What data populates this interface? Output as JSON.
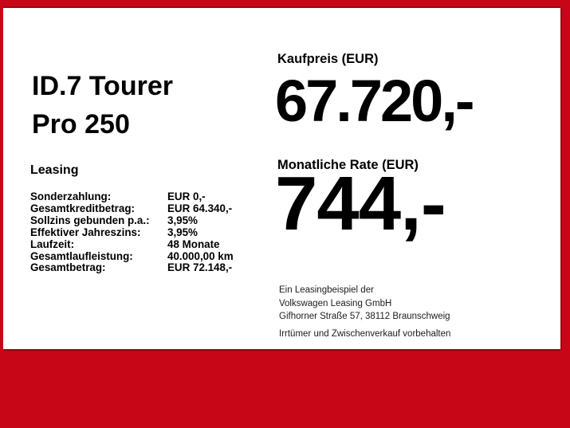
{
  "colors": {
    "background": "#c70617",
    "background_edge": "#9b0410",
    "card": "#ffffff",
    "text": "#000000"
  },
  "vehicle": {
    "title_line1": "ID.7 Tourer",
    "title_line2": "Pro 250"
  },
  "leasing": {
    "heading": "Leasing",
    "rows": [
      {
        "label": "Sonderzahlung:",
        "value": "EUR 0,-"
      },
      {
        "label": "Gesamtkreditbetrag:",
        "value": "EUR 64.340,-"
      },
      {
        "label": "Sollzins gebunden p.a.:",
        "value": "3,95%"
      },
      {
        "label": "Effektiver Jahreszins:",
        "value": "3,95%"
      },
      {
        "label": "Laufzeit:",
        "value": "48 Monate"
      },
      {
        "label": "Gesamtlaufleistung:",
        "value": "40.000,00 km"
      },
      {
        "label": "Gesamtbetrag:",
        "value": "EUR 72.148,-"
      }
    ]
  },
  "pricing": {
    "purchase_label": "Kaufpreis (EUR)",
    "purchase_value": "67.720,-",
    "rate_label": "Monatliche Rate (EUR)",
    "rate_value": "744,-"
  },
  "disclaimer": {
    "lines": [
      "Ein Leasingbeispiel der",
      "Volkswagen Leasing GmbH",
      "Gifhorner Straße 57, 38112 Braunschweig"
    ],
    "note": "Irrtümer und Zwischenverkauf vorbehalten"
  }
}
